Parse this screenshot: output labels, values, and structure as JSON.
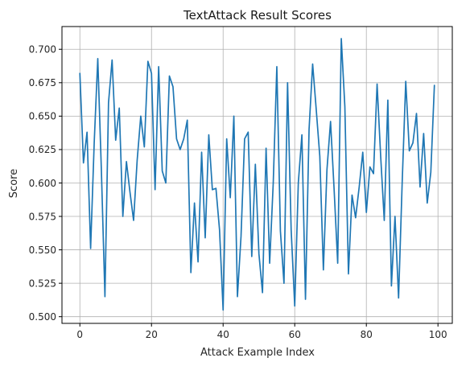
{
  "chart_data": {
    "type": "line",
    "title": "TextAttack Result Scores",
    "xlabel": "Attack Example Index",
    "ylabel": "Score",
    "xlim": [
      -5,
      104
    ],
    "ylim": [
      0.495,
      0.717
    ],
    "grid": true,
    "legend": "none",
    "x_ticks": [
      0,
      20,
      40,
      60,
      80,
      100
    ],
    "x_tick_labels": [
      "0",
      "20",
      "40",
      "60",
      "80",
      "100"
    ],
    "y_ticks": [
      0.5,
      0.525,
      0.55,
      0.575,
      0.6,
      0.625,
      0.65,
      0.675,
      0.7
    ],
    "y_tick_labels": [
      "0.500",
      "0.525",
      "0.550",
      "0.575",
      "0.600",
      "0.625",
      "0.650",
      "0.675",
      "0.700"
    ],
    "series": [
      {
        "color": "#1f77b4",
        "x": [
          0,
          1,
          2,
          3,
          4,
          5,
          6,
          7,
          8,
          9,
          10,
          11,
          12,
          13,
          14,
          15,
          16,
          17,
          18,
          19,
          20,
          21,
          22,
          23,
          24,
          25,
          26,
          27,
          28,
          29,
          30,
          31,
          32,
          33,
          34,
          35,
          36,
          37,
          38,
          39,
          40,
          41,
          42,
          43,
          44,
          45,
          46,
          47,
          48,
          49,
          50,
          51,
          52,
          53,
          54,
          55,
          56,
          57,
          58,
          59,
          60,
          61,
          62,
          63,
          64,
          65,
          66,
          67,
          68,
          69,
          70,
          71,
          72,
          73,
          74,
          75,
          76,
          77,
          78,
          79,
          80,
          81,
          82,
          83,
          84,
          85,
          86,
          87,
          88,
          89,
          90,
          91,
          92,
          93,
          94,
          95,
          96,
          97,
          98,
          99
        ],
        "values": [
          0.682,
          0.615,
          0.638,
          0.551,
          0.63,
          0.693,
          0.61,
          0.515,
          0.66,
          0.692,
          0.632,
          0.656,
          0.575,
          0.616,
          0.593,
          0.572,
          0.617,
          0.65,
          0.627,
          0.691,
          0.682,
          0.595,
          0.687,
          0.609,
          0.6,
          0.68,
          0.672,
          0.633,
          0.625,
          0.633,
          0.647,
          0.533,
          0.585,
          0.541,
          0.623,
          0.559,
          0.636,
          0.595,
          0.596,
          0.565,
          0.505,
          0.633,
          0.589,
          0.65,
          0.515,
          0.56,
          0.633,
          0.638,
          0.545,
          0.614,
          0.547,
          0.518,
          0.626,
          0.54,
          0.6,
          0.687,
          0.564,
          0.525,
          0.675,
          0.565,
          0.508,
          0.6,
          0.636,
          0.513,
          0.64,
          0.689,
          0.655,
          0.62,
          0.535,
          0.61,
          0.646,
          0.595,
          0.54,
          0.708,
          0.657,
          0.532,
          0.591,
          0.574,
          0.597,
          0.623,
          0.578,
          0.612,
          0.607,
          0.674,
          0.62,
          0.572,
          0.662,
          0.523,
          0.575,
          0.514,
          0.6,
          0.676,
          0.624,
          0.63,
          0.652,
          0.597,
          0.637,
          0.585,
          0.608,
          0.673
        ]
      }
    ]
  }
}
